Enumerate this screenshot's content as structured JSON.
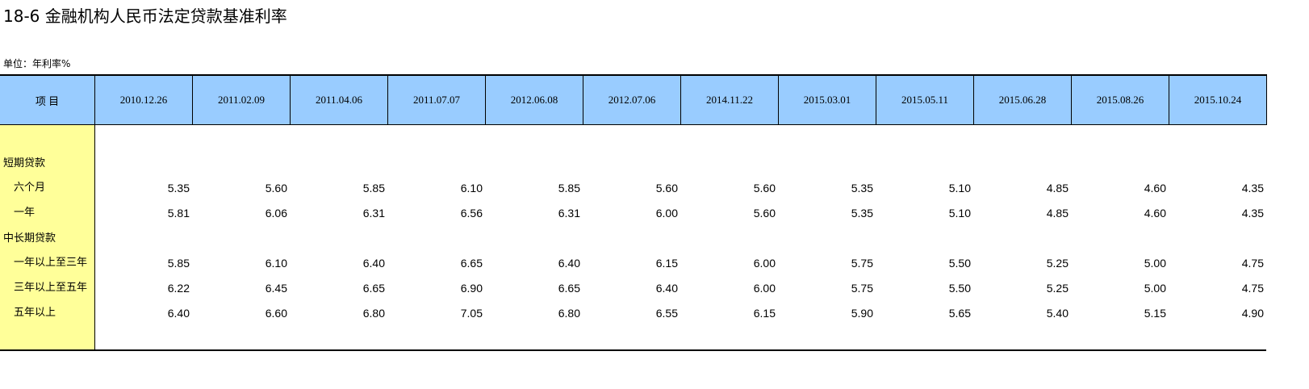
{
  "title": "18-6  金融机构人民币法定贷款基准利率",
  "unit": "单位：年利率%",
  "table": {
    "header": [
      "项    目",
      "2010.12.26",
      "2011.02.09",
      "2011.04.06",
      "2011.07.07",
      "2012.06.08",
      "2012.07.06",
      "2014.11.22",
      "2015.03.01",
      "2015.05.11",
      "2015.06.28",
      "2015.08.26",
      "2015.10.24"
    ],
    "rows": [
      [
        "短期贷款"
      ],
      [
        "六个月",
        "5.35",
        "5.60",
        "5.85",
        "6.10",
        "5.85",
        "5.60",
        "5.60",
        "5.35",
        "5.10",
        "4.85",
        "4.60",
        "4.35"
      ],
      [
        "一年",
        "5.81",
        "6.06",
        "6.31",
        "6.56",
        "6.31",
        "6.00",
        "5.60",
        "5.35",
        "5.10",
        "4.85",
        "4.60",
        "4.35"
      ],
      [
        "中长期贷款"
      ],
      [
        "一年以上至三年",
        "5.85",
        "6.10",
        "6.40",
        "6.65",
        "6.40",
        "6.15",
        "6.00",
        "5.75",
        "5.50",
        "5.25",
        "5.00",
        "4.75"
      ],
      [
        "三年以上至五年",
        "6.22",
        "6.45",
        "6.65",
        "6.90",
        "6.65",
        "6.40",
        "6.00",
        "5.75",
        "5.50",
        "5.25",
        "5.00",
        "4.75"
      ],
      [
        "五年以上",
        "6.40",
        "6.60",
        "6.80",
        "7.05",
        "6.80",
        "6.55",
        "6.15",
        "5.90",
        "5.65",
        "5.40",
        "5.15",
        "4.90"
      ]
    ]
  }
}
